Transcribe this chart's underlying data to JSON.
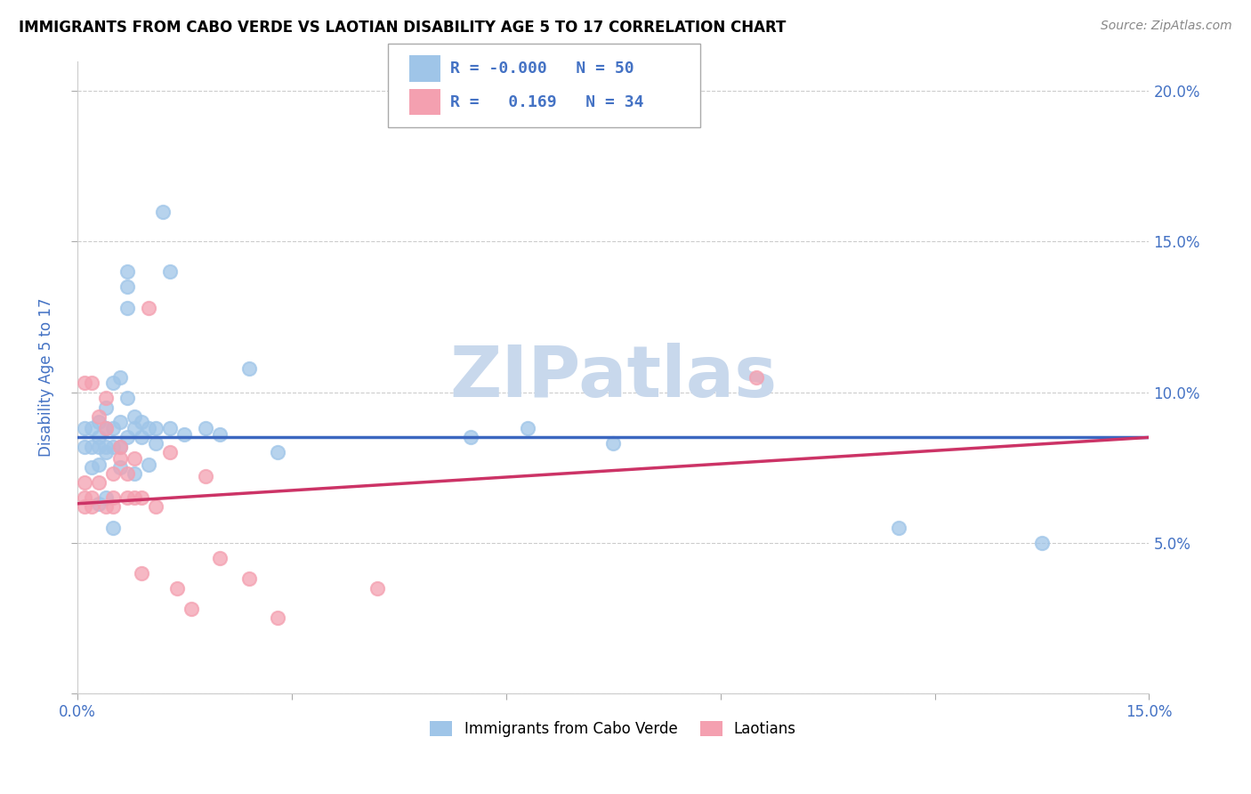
{
  "title": "IMMIGRANTS FROM CABO VERDE VS LAOTIAN DISABILITY AGE 5 TO 17 CORRELATION CHART",
  "source": "Source: ZipAtlas.com",
  "ylabel_label": "Disability Age 5 to 17",
  "xlim": [
    0.0,
    0.15
  ],
  "ylim": [
    0.0,
    0.21
  ],
  "xticks": [
    0.0,
    0.03,
    0.06,
    0.09,
    0.12,
    0.15
  ],
  "yticks": [
    0.0,
    0.05,
    0.1,
    0.15,
    0.2
  ],
  "cabo_verde_color": "#9fc5e8",
  "laotian_color": "#f4a0b0",
  "cabo_verde_R": "-0.000",
  "cabo_verde_N": "50",
  "laotian_R": "0.169",
  "laotian_N": "34",
  "cabo_verde_line_color": "#3c67c0",
  "laotian_line_color": "#cc3366",
  "watermark_color": "#c8d8ec",
  "cabo_verde_x": [
    0.001,
    0.001,
    0.002,
    0.002,
    0.002,
    0.003,
    0.003,
    0.003,
    0.003,
    0.003,
    0.004,
    0.004,
    0.004,
    0.004,
    0.004,
    0.005,
    0.005,
    0.005,
    0.005,
    0.006,
    0.006,
    0.006,
    0.006,
    0.007,
    0.007,
    0.007,
    0.007,
    0.007,
    0.008,
    0.008,
    0.008,
    0.009,
    0.009,
    0.01,
    0.01,
    0.011,
    0.011,
    0.012,
    0.013,
    0.013,
    0.015,
    0.018,
    0.02,
    0.024,
    0.028,
    0.055,
    0.063,
    0.075,
    0.115,
    0.135
  ],
  "cabo_verde_y": [
    0.088,
    0.082,
    0.088,
    0.082,
    0.075,
    0.09,
    0.085,
    0.082,
    0.076,
    0.063,
    0.095,
    0.088,
    0.082,
    0.08,
    0.065,
    0.103,
    0.088,
    0.082,
    0.055,
    0.105,
    0.09,
    0.082,
    0.075,
    0.14,
    0.135,
    0.128,
    0.098,
    0.085,
    0.092,
    0.088,
    0.073,
    0.09,
    0.085,
    0.088,
    0.076,
    0.088,
    0.083,
    0.16,
    0.14,
    0.088,
    0.086,
    0.088,
    0.086,
    0.108,
    0.08,
    0.085,
    0.088,
    0.083,
    0.055,
    0.05
  ],
  "laotian_x": [
    0.001,
    0.001,
    0.001,
    0.001,
    0.002,
    0.002,
    0.002,
    0.003,
    0.003,
    0.004,
    0.004,
    0.004,
    0.005,
    0.005,
    0.005,
    0.006,
    0.006,
    0.007,
    0.007,
    0.008,
    0.008,
    0.009,
    0.009,
    0.01,
    0.011,
    0.013,
    0.014,
    0.016,
    0.018,
    0.02,
    0.024,
    0.028,
    0.042,
    0.095
  ],
  "laotian_y": [
    0.103,
    0.07,
    0.065,
    0.062,
    0.103,
    0.065,
    0.062,
    0.092,
    0.07,
    0.098,
    0.088,
    0.062,
    0.073,
    0.065,
    0.062,
    0.082,
    0.078,
    0.073,
    0.065,
    0.078,
    0.065,
    0.065,
    0.04,
    0.128,
    0.062,
    0.08,
    0.035,
    0.028,
    0.072,
    0.045,
    0.038,
    0.025,
    0.035,
    0.105
  ],
  "cabo_verde_line_y_start": 0.085,
  "cabo_verde_line_y_end": 0.085,
  "laotian_line_y_start": 0.063,
  "laotian_line_y_end": 0.085
}
